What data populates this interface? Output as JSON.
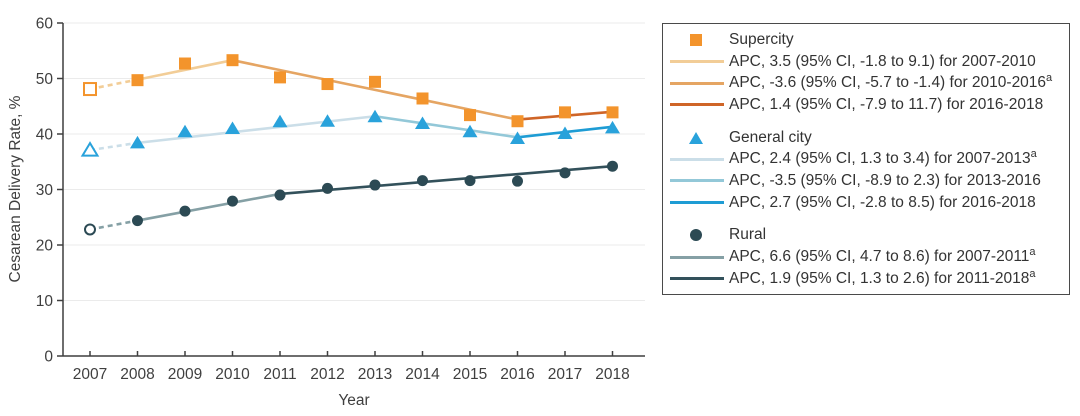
{
  "figure": {
    "background": "#FFFFFF"
  },
  "axis": {
    "color": "#3F3F3F",
    "grid_color": "#EBEBEB",
    "tick_label_color": "#3F3F3F"
  },
  "chart_data": {
    "type": "line",
    "title": "",
    "xlabel": "Year",
    "ylabel": "Cesarean Delivery Rate, %",
    "x_years": [
      2007,
      2008,
      2009,
      2010,
      2011,
      2012,
      2013,
      2014,
      2015,
      2016,
      2017,
      2018
    ],
    "ylim": [
      0,
      60
    ],
    "yticks": [
      0,
      10,
      20,
      30,
      40,
      50,
      60
    ],
    "grid": "horizontal",
    "legend_position": "right",
    "note": "2007 points drawn as open markers joined to 2008 by a dashed line; solid lines are fitted APC trend segments",
    "series": [
      {
        "name": "Supercity",
        "marker": "square",
        "color": "#F3942C",
        "first_point_open": true,
        "values": [
          48.1,
          49.7,
          52.7,
          53.3,
          50.2,
          49.0,
          49.4,
          46.4,
          43.4,
          42.3,
          43.9,
          43.9
        ],
        "trend_segments": [
          {
            "from_year": 2007,
            "from_value": 48.1,
            "to_year": 2008,
            "to_value": 49.8,
            "color": "#F2CD97",
            "dashed": true
          },
          {
            "from_year": 2008,
            "from_value": 49.8,
            "to_year": 2010,
            "to_value": 53.3,
            "color": "#F2CD97",
            "dashed": false
          },
          {
            "from_year": 2010,
            "from_value": 53.3,
            "to_year": 2016,
            "to_value": 42.6,
            "color": "#E5A563",
            "dashed": false
          },
          {
            "from_year": 2016,
            "from_value": 42.6,
            "to_year": 2018,
            "to_value": 44.0,
            "color": "#CF6527",
            "dashed": false
          }
        ]
      },
      {
        "name": "General city",
        "marker": "triangle",
        "color": "#29A2DB",
        "first_point_open": true,
        "values": [
          37.1,
          38.4,
          40.4,
          41.0,
          42.2,
          42.3,
          43.1,
          41.9,
          40.4,
          39.2,
          40.1,
          41.1
        ],
        "trend_segments": [
          {
            "from_year": 2007,
            "from_value": 37.1,
            "to_year": 2008,
            "to_value": 38.4,
            "color": "#CBDEE8",
            "dashed": true
          },
          {
            "from_year": 2008,
            "from_value": 38.4,
            "to_year": 2013,
            "to_value": 43.2,
            "color": "#CBDEE8",
            "dashed": false
          },
          {
            "from_year": 2013,
            "from_value": 43.2,
            "to_year": 2016,
            "to_value": 39.4,
            "color": "#93C8D8",
            "dashed": false
          },
          {
            "from_year": 2016,
            "from_value": 39.4,
            "to_year": 2018,
            "to_value": 41.3,
            "color": "#1E9CD4",
            "dashed": false
          }
        ]
      },
      {
        "name": "Rural",
        "marker": "circle",
        "color": "#2C4A54",
        "first_point_open": true,
        "values": [
          22.8,
          24.4,
          26.1,
          27.9,
          29.0,
          30.2,
          30.8,
          31.6,
          31.6,
          31.5,
          33.0,
          34.2
        ],
        "trend_segments": [
          {
            "from_year": 2007,
            "from_value": 22.8,
            "to_year": 2008,
            "to_value": 24.4,
            "color": "#85A0A5",
            "dashed": true
          },
          {
            "from_year": 2008,
            "from_value": 24.4,
            "to_year": 2011,
            "to_value": 29.2,
            "color": "#85A0A5",
            "dashed": false
          },
          {
            "from_year": 2011,
            "from_value": 29.2,
            "to_year": 2018,
            "to_value": 34.2,
            "color": "#33515B",
            "dashed": false
          }
        ]
      }
    ]
  },
  "legend": {
    "groups": [
      {
        "title": "Supercity",
        "marker": "square",
        "marker_color": "#F3942C",
        "entries": [
          {
            "text": "APC, 3.5 (95% CI, -1.8 to 9.1) for 2007-2010",
            "sup": "",
            "color": "#F2CD97"
          },
          {
            "text": "APC, -3.6 (95% CI, -5.7 to -1.4) for 2010-2016",
            "sup": "a",
            "color": "#E5A563"
          },
          {
            "text": "APC, 1.4 (95% CI, -7.9 to 11.7) for 2016-2018",
            "sup": "",
            "color": "#CF6527"
          }
        ]
      },
      {
        "title": "General city",
        "marker": "triangle",
        "marker_color": "#29A2DB",
        "entries": [
          {
            "text": "APC, 2.4 (95% CI, 1.3 to 3.4) for 2007-2013",
            "sup": "a",
            "color": "#CBDEE8"
          },
          {
            "text": "APC, -3.5 (95% CI, -8.9 to 2.3) for 2013-2016",
            "sup": "",
            "color": "#93C8D8"
          },
          {
            "text": "APC, 2.7 (95% CI, -2.8 to 8.5) for 2016-2018",
            "sup": "",
            "color": "#1E9CD4"
          }
        ]
      },
      {
        "title": "Rural",
        "marker": "circle",
        "marker_color": "#2C4A54",
        "entries": [
          {
            "text": "APC, 6.6 (95% CI, 4.7 to 8.6) for 2007-2011",
            "sup": "a",
            "color": "#85A0A5"
          },
          {
            "text": "APC, 1.9 (95% CI, 1.3 to 2.6) for 2011-2018",
            "sup": "a",
            "color": "#33515B"
          }
        ]
      }
    ]
  }
}
